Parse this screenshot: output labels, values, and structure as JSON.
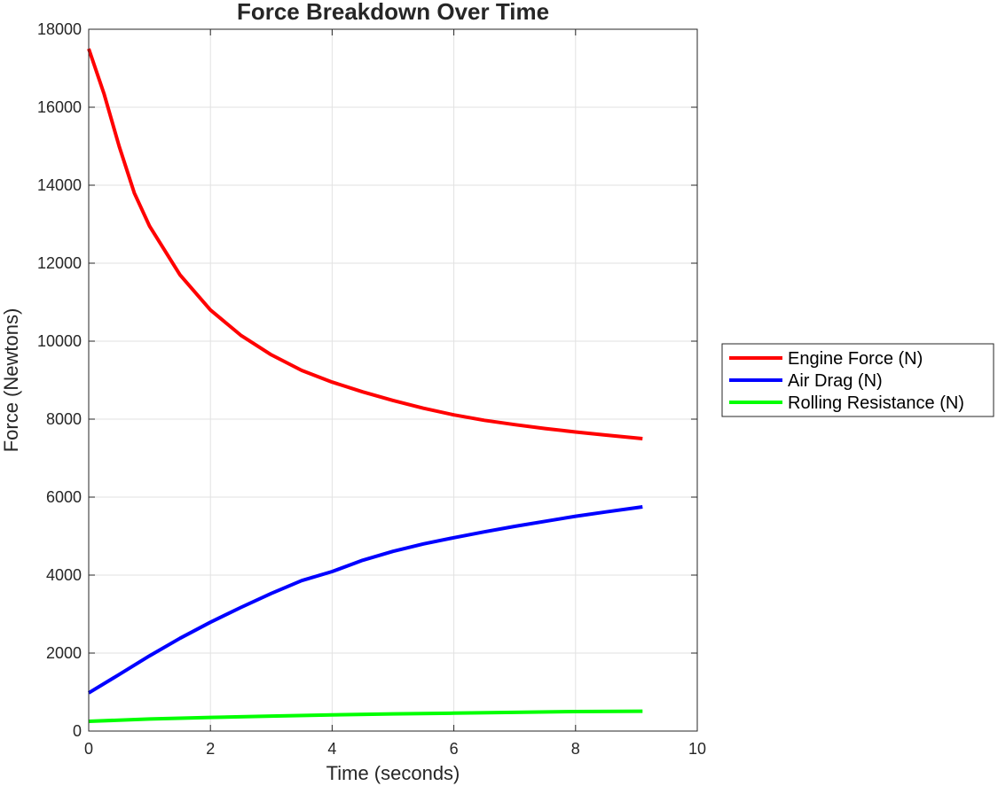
{
  "chart_data": {
    "type": "line",
    "title": "Force Breakdown Over Time",
    "xlabel": "Time (seconds)",
    "ylabel": "Force (Newtons)",
    "xlim": [
      0,
      10
    ],
    "ylim": [
      0,
      18000
    ],
    "xticks": [
      0,
      2,
      4,
      6,
      8,
      10
    ],
    "yticks": [
      0,
      2000,
      4000,
      6000,
      8000,
      10000,
      12000,
      14000,
      16000,
      18000
    ],
    "grid": true,
    "legend_position": "outside-right",
    "series": [
      {
        "name": "Engine Force (N)",
        "color": "#ff0000",
        "x": [
          0,
          0.25,
          0.5,
          0.75,
          1,
          1.5,
          2,
          2.5,
          3,
          3.5,
          4,
          4.5,
          5,
          5.5,
          6,
          6.5,
          7,
          7.5,
          8,
          8.5,
          9.1
        ],
        "y": [
          17500,
          16350,
          15000,
          13800,
          12950,
          11700,
          10800,
          10150,
          9650,
          9250,
          8950,
          8700,
          8480,
          8280,
          8110,
          7970,
          7860,
          7760,
          7670,
          7590,
          7500
        ]
      },
      {
        "name": "Air Drag (N)",
        "color": "#0000ff",
        "x": [
          0,
          0.5,
          1,
          1.5,
          2,
          2.5,
          3,
          3.5,
          4,
          4.5,
          5,
          5.5,
          6,
          6.5,
          7,
          7.5,
          8,
          8.5,
          9.1
        ],
        "y": [
          980,
          1450,
          1930,
          2380,
          2790,
          3170,
          3530,
          3860,
          4090,
          4380,
          4610,
          4800,
          4960,
          5110,
          5250,
          5380,
          5510,
          5620,
          5750
        ]
      },
      {
        "name": "Rolling Resistance (N)",
        "color": "#00ff00",
        "x": [
          0,
          1,
          2,
          3,
          4,
          5,
          6,
          7,
          8,
          9.1
        ],
        "y": [
          250,
          310,
          350,
          385,
          415,
          440,
          460,
          480,
          500,
          510
        ]
      }
    ]
  }
}
